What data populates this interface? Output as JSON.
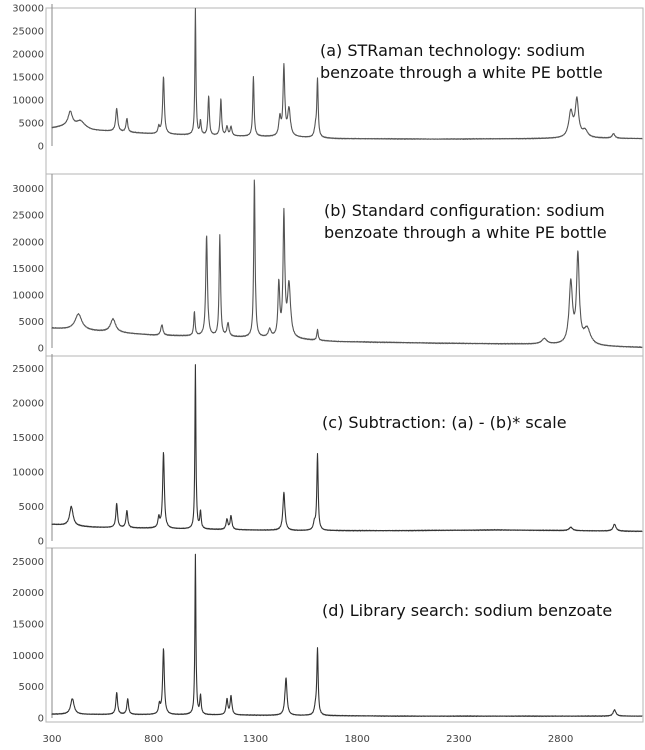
{
  "chart_data": [
    {
      "type": "line",
      "title_lines": [
        "(a) STRaman technology: sodium",
        "benzoate through a white PE bottle"
      ],
      "xlim": [
        300,
        3200
      ],
      "ylim": [
        0,
        30000
      ],
      "yticks": [
        0,
        5000,
        10000,
        15000,
        20000,
        25000,
        30000
      ],
      "grid": false,
      "color": "#555555",
      "baseline": [
        [
          300,
          3900
        ],
        [
          380,
          4400
        ],
        [
          500,
          3400
        ],
        [
          800,
          2600
        ],
        [
          1100,
          2200
        ],
        [
          1500,
          1900
        ],
        [
          1700,
          1600
        ],
        [
          2200,
          1500
        ],
        [
          2700,
          1600
        ],
        [
          2900,
          1700
        ],
        [
          3200,
          1600
        ]
      ],
      "peaks": [
        [
          390,
          3000,
          12
        ],
        [
          440,
          1500,
          25
        ],
        [
          618,
          5000,
          6
        ],
        [
          668,
          3000,
          5
        ],
        [
          825,
          1500,
          5
        ],
        [
          848,
          12500,
          5
        ],
        [
          1005,
          27500,
          3
        ],
        [
          1030,
          3000,
          4
        ],
        [
          1070,
          8500,
          4
        ],
        [
          1130,
          8000,
          4
        ],
        [
          1160,
          2000,
          5
        ],
        [
          1180,
          2000,
          5
        ],
        [
          1290,
          13000,
          4
        ],
        [
          1420,
          4000,
          6
        ],
        [
          1440,
          15000,
          5
        ],
        [
          1465,
          6000,
          8
        ],
        [
          1595,
          2000,
          6
        ],
        [
          1605,
          12500,
          4
        ],
        [
          2850,
          5500,
          12
        ],
        [
          2880,
          8000,
          10
        ],
        [
          2920,
          1500,
          15
        ],
        [
          3060,
          1000,
          8
        ]
      ]
    },
    {
      "type": "line",
      "title_lines": [
        "(b) Standard configuration: sodium",
        "benzoate through a white PE bottle"
      ],
      "xlim": [
        300,
        3200
      ],
      "ylim": [
        0,
        32000
      ],
      "yticks": [
        0,
        5000,
        10000,
        15000,
        20000,
        25000,
        30000
      ],
      "grid": false,
      "color": "#555555",
      "baseline": [
        [
          300,
          3700
        ],
        [
          500,
          3200
        ],
        [
          800,
          2400
        ],
        [
          1100,
          2100
        ],
        [
          1400,
          1800
        ],
        [
          1700,
          1200
        ],
        [
          2200,
          900
        ],
        [
          2700,
          700
        ],
        [
          3000,
          300
        ],
        [
          3200,
          100
        ]
      ],
      "peaks": [
        [
          430,
          3000,
          20
        ],
        [
          600,
          2500,
          15
        ],
        [
          840,
          2000,
          6
        ],
        [
          1000,
          4500,
          4
        ],
        [
          1060,
          19000,
          5
        ],
        [
          1125,
          19000,
          4
        ],
        [
          1165,
          2500,
          6
        ],
        [
          1295,
          30000,
          4
        ],
        [
          1370,
          1500,
          8
        ],
        [
          1415,
          10000,
          5
        ],
        [
          1440,
          23000,
          5
        ],
        [
          1465,
          10000,
          9
        ],
        [
          1605,
          2000,
          4
        ],
        [
          2720,
          1000,
          15
        ],
        [
          2850,
          11500,
          10
        ],
        [
          2885,
          16500,
          8
        ],
        [
          2930,
          3000,
          20
        ]
      ]
    },
    {
      "type": "line",
      "title_lines": [
        "(c) Subtraction: (a) - (b)* scale"
      ],
      "xlim": [
        300,
        3200
      ],
      "ylim": [
        0,
        26500
      ],
      "yticks": [
        0,
        5000,
        10000,
        15000,
        20000,
        25000
      ],
      "grid": false,
      "color": "#333333",
      "baseline": [
        [
          300,
          2400
        ],
        [
          500,
          2000
        ],
        [
          1000,
          1700
        ],
        [
          1500,
          1500
        ],
        [
          2000,
          1500
        ],
        [
          2500,
          1600
        ],
        [
          3200,
          1400
        ]
      ],
      "peaks": [
        [
          395,
          2800,
          10
        ],
        [
          618,
          3500,
          5
        ],
        [
          668,
          2500,
          5
        ],
        [
          825,
          1500,
          5
        ],
        [
          848,
          11000,
          5
        ],
        [
          1005,
          23800,
          3
        ],
        [
          1030,
          2500,
          4
        ],
        [
          1160,
          1500,
          5
        ],
        [
          1180,
          2000,
          5
        ],
        [
          1440,
          5500,
          6
        ],
        [
          1590,
          1000,
          6
        ],
        [
          1605,
          11000,
          4
        ],
        [
          2850,
          500,
          10
        ],
        [
          3065,
          1000,
          8
        ]
      ]
    },
    {
      "type": "line",
      "title_lines": [
        "(d) Library search: sodium benzoate"
      ],
      "xlim": [
        300,
        3200
      ],
      "ylim": [
        0,
        26500
      ],
      "yticks": [
        0,
        5000,
        10000,
        15000,
        20000,
        25000
      ],
      "grid": false,
      "color": "#333333",
      "baseline": [
        [
          300,
          600
        ],
        [
          1000,
          500
        ],
        [
          2000,
          300
        ],
        [
          3200,
          300
        ]
      ],
      "peaks": [
        [
          400,
          2500,
          10
        ],
        [
          618,
          3500,
          5
        ],
        [
          672,
          2500,
          5
        ],
        [
          828,
          1500,
          5
        ],
        [
          848,
          10500,
          5
        ],
        [
          1005,
          25500,
          3
        ],
        [
          1030,
          3000,
          4
        ],
        [
          1160,
          2500,
          5
        ],
        [
          1180,
          3000,
          5
        ],
        [
          1450,
          6000,
          6
        ],
        [
          1595,
          1200,
          6
        ],
        [
          1605,
          10500,
          4
        ],
        [
          3065,
          1000,
          8
        ]
      ]
    }
  ],
  "x_axis": {
    "ticks": [
      300,
      800,
      1300,
      1800,
      2300,
      2800
    ]
  }
}
